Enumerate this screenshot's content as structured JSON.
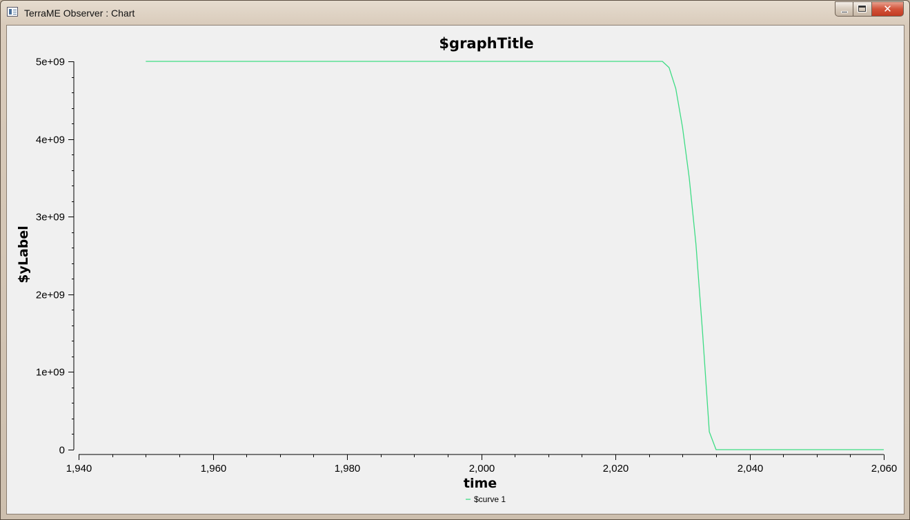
{
  "window": {
    "title": "TerraME Observer : Chart",
    "icon": "chart-window-icon",
    "close_glyph": "✕"
  },
  "chart_data": {
    "type": "line",
    "title": "$graphTitle",
    "xlabel": "time",
    "ylabel": "$yLabel",
    "xlim": [
      1940,
      2060
    ],
    "ylim": [
      0,
      5000000000
    ],
    "x_ticks": [
      1940,
      1960,
      1980,
      2000,
      2020,
      2040,
      2060
    ],
    "x_tick_labels": [
      "1,940",
      "1,960",
      "1,980",
      "2,000",
      "2,020",
      "2,040",
      "2,060"
    ],
    "y_ticks": [
      0,
      1000000000,
      2000000000,
      3000000000,
      4000000000,
      5000000000
    ],
    "y_tick_labels": [
      "0",
      "1e+09",
      "2e+09",
      "3e+09",
      "4e+09",
      "5e+09"
    ],
    "grid": false,
    "legend_position": "bottom-center",
    "series": [
      {
        "name": "$curve 1",
        "color": "#3ddc84",
        "x": [
          1950,
          1960,
          1970,
          1980,
          1990,
          2000,
          2010,
          2020,
          2027,
          2028,
          2029,
          2030,
          2031,
          2032,
          2033,
          2034,
          2035,
          2040,
          2050,
          2060
        ],
        "y": [
          5000000000,
          5000000000,
          5000000000,
          5000000000,
          5000000000,
          5000000000,
          5000000000,
          5000000000,
          5000000000,
          4920000000,
          4650000000,
          4150000000,
          3500000000,
          2650000000,
          1500000000,
          230000000,
          0,
          0,
          0,
          0
        ]
      }
    ]
  }
}
